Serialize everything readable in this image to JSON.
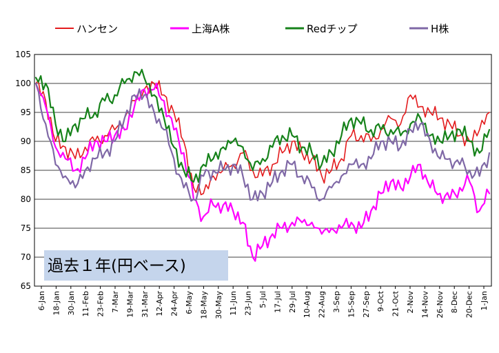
{
  "chart_data": {
    "type": "line",
    "title": "",
    "annotation": "過去１年(円ベース)",
    "xlabel": "",
    "ylabel": "",
    "ylim": [
      65,
      105
    ],
    "yticks": [
      65,
      70,
      75,
      80,
      85,
      90,
      95,
      100,
      105
    ],
    "grid": true,
    "legend_position": "top",
    "x_tick_labels": [
      "6-Jan",
      "18-Jan",
      "30-Jan",
      "11-Feb",
      "23-Feb",
      "7-Mar",
      "19-Mar",
      "31-Mar",
      "12-Apr",
      "24-Apr",
      "6-May",
      "18-May",
      "30-May",
      "11-Jun",
      "23-Jun",
      "5-Jul",
      "17-Jul",
      "29-Jul",
      "10-Aug",
      "22-Aug",
      "3-Sep",
      "15-Sep",
      "27-Sep",
      "9-Oct",
      "21-Oct",
      "2-Nov",
      "14-Nov",
      "26-Nov",
      "8-Dec",
      "20-Dec",
      "1-Jan"
    ],
    "series": [
      {
        "name": "ハンセン",
        "color": "#e31a1c",
        "width": 1.6,
        "values": [
          100,
          97,
          90,
          89,
          87,
          89,
          90,
          91,
          92,
          94,
          97,
          99,
          100,
          98,
          95,
          90,
          82,
          81,
          84,
          85,
          86,
          88,
          85,
          84,
          86,
          88,
          90,
          88,
          87,
          84,
          85,
          87,
          91,
          91,
          90,
          92,
          94,
          93,
          98,
          96,
          95,
          94,
          93,
          91,
          90,
          92,
          95
        ]
      },
      {
        "name": "上海A株",
        "color": "#ff00ff",
        "width": 2.2,
        "values": [
          100,
          96,
          89,
          87,
          85,
          87,
          90,
          90,
          91,
          92,
          96,
          99,
          99,
          97,
          92,
          88,
          80,
          77,
          79,
          79,
          78,
          76,
          70,
          72,
          74,
          75,
          76,
          76,
          76,
          74,
          75,
          75,
          76,
          75,
          78,
          81,
          83,
          82,
          84,
          86,
          82,
          81,
          80,
          82,
          83,
          78,
          81
        ]
      },
      {
        "name": "Redチップ",
        "color": "#16821a",
        "width": 2.2,
        "values": [
          101,
          100,
          93,
          90,
          93,
          94,
          95,
          97,
          98,
          100,
          102,
          101,
          98,
          94,
          89,
          85,
          83,
          86,
          87,
          89,
          90,
          89,
          85,
          87,
          89,
          91,
          91,
          89,
          88,
          86,
          88,
          91,
          94,
          93,
          92,
          92,
          92,
          91,
          93,
          94,
          91,
          90,
          91,
          92,
          90,
          88,
          92
        ]
      },
      {
        "name": "H株",
        "color": "#7f68a6",
        "width": 2.2,
        "values": [
          100,
          93,
          86,
          84,
          82,
          85,
          87,
          88,
          90,
          94,
          98,
          98,
          95,
          92,
          87,
          82,
          80,
          84,
          85,
          85,
          86,
          84,
          80,
          81,
          83,
          85,
          86,
          84,
          82,
          80,
          82,
          84,
          86,
          86,
          87,
          90,
          90,
          89,
          92,
          93,
          90,
          87,
          87,
          86,
          85,
          84,
          88
        ]
      }
    ]
  }
}
